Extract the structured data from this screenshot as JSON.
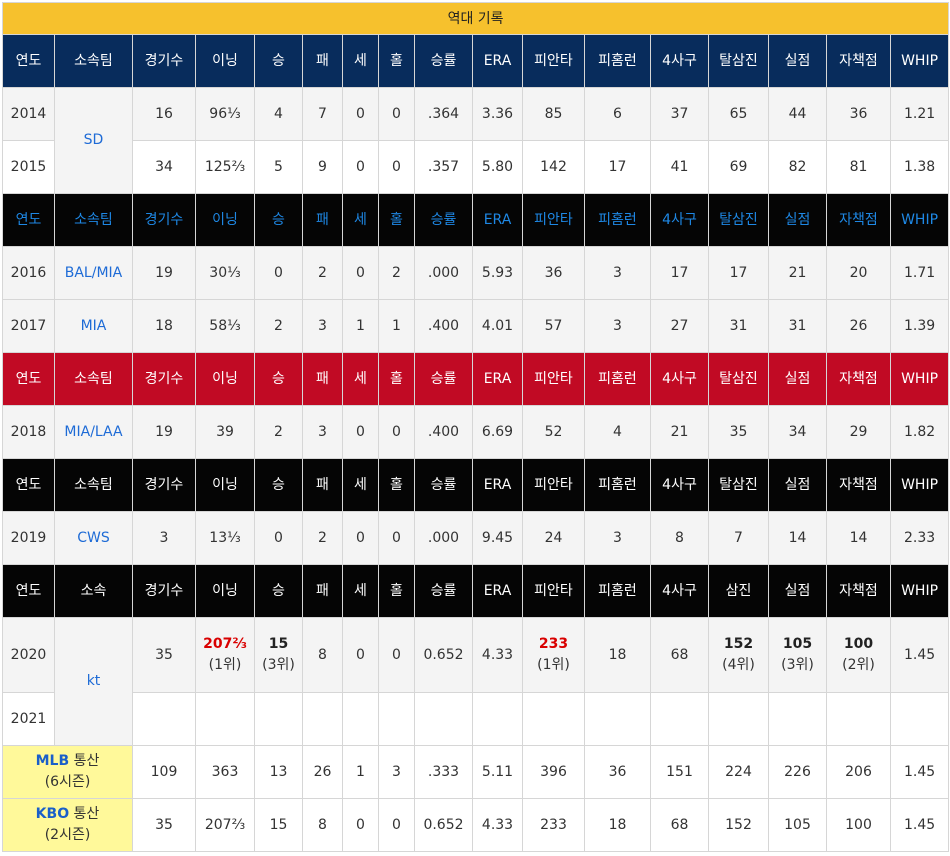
{
  "title": "역대 기록",
  "headers": {
    "year": "연도",
    "team": "소속팀",
    "team_short": "소속",
    "games": "경기수",
    "innings": "이닝",
    "wins": "승",
    "losses": "패",
    "saves": "세",
    "holds": "홀",
    "win_pct": "승률",
    "era": "ERA",
    "hits": "피안타",
    "hr": "피홈런",
    "bb": "4사구",
    "so": "탈삼진",
    "so_short": "삼진",
    "runs": "실점",
    "er": "자책점",
    "whip": "WHIP"
  },
  "rows": [
    {
      "year": "2014",
      "team": "SD",
      "g": "16",
      "ip": "96⅓",
      "w": "4",
      "l": "7",
      "sv": "0",
      "hld": "0",
      "pct": ".364",
      "era": "3.36",
      "h": "85",
      "hr": "6",
      "bb": "37",
      "so": "65",
      "r": "44",
      "er": "36",
      "whip": "1.21"
    },
    {
      "year": "2015",
      "g": "34",
      "ip": "125⅔",
      "w": "5",
      "l": "9",
      "sv": "0",
      "hld": "0",
      "pct": ".357",
      "era": "5.80",
      "h": "142",
      "hr": "17",
      "bb": "41",
      "so": "69",
      "r": "82",
      "er": "81",
      "whip": "1.38"
    },
    {
      "year": "2016",
      "team": "BAL/MIA",
      "g": "19",
      "ip": "30⅓",
      "w": "0",
      "l": "2",
      "sv": "0",
      "hld": "2",
      "pct": ".000",
      "era": "5.93",
      "h": "36",
      "hr": "3",
      "bb": "17",
      "so": "17",
      "r": "21",
      "er": "20",
      "whip": "1.71"
    },
    {
      "year": "2017",
      "team": "MIA",
      "g": "18",
      "ip": "58⅓",
      "w": "2",
      "l": "3",
      "sv": "1",
      "hld": "1",
      "pct": ".400",
      "era": "4.01",
      "h": "57",
      "hr": "3",
      "bb": "27",
      "so": "31",
      "r": "31",
      "er": "26",
      "whip": "1.39"
    },
    {
      "year": "2018",
      "team": "MIA/LAA",
      "g": "19",
      "ip": "39",
      "w": "2",
      "l": "3",
      "sv": "0",
      "hld": "0",
      "pct": ".400",
      "era": "6.69",
      "h": "52",
      "hr": "4",
      "bb": "21",
      "so": "35",
      "r": "34",
      "er": "29",
      "whip": "1.82"
    },
    {
      "year": "2019",
      "team": "CWS",
      "g": "3",
      "ip": "13⅓",
      "w": "0",
      "l": "2",
      "sv": "0",
      "hld": "0",
      "pct": ".000",
      "era": "9.45",
      "h": "24",
      "hr": "3",
      "bb": "8",
      "so": "7",
      "r": "14",
      "er": "14",
      "whip": "2.33"
    },
    {
      "year": "2020",
      "team": "kt",
      "g": "35",
      "ip": "207⅔",
      "ip_rank": "(1위)",
      "w": "15",
      "w_rank": "(3위)",
      "l": "8",
      "sv": "0",
      "hld": "0",
      "pct": "0.652",
      "era": "4.33",
      "h": "233",
      "h_rank": "(1위)",
      "hr": "18",
      "bb": "68",
      "so": "152",
      "so_rank": "(4위)",
      "r": "105",
      "r_rank": "(3위)",
      "er": "100",
      "er_rank": "(2위)",
      "whip": "1.45"
    },
    {
      "year": "2021"
    }
  ],
  "totals": [
    {
      "league": "MLB",
      "label": "통산",
      "seasons": "(6시즌)",
      "g": "109",
      "ip": "363",
      "w": "13",
      "l": "26",
      "sv": "1",
      "hld": "3",
      "pct": ".333",
      "era": "5.11",
      "h": "396",
      "hr": "36",
      "bb": "151",
      "so": "224",
      "r": "226",
      "er": "206",
      "whip": "1.45"
    },
    {
      "league": "KBO",
      "label": "통산",
      "seasons": "(2시즌)",
      "g": "35",
      "ip": "207⅔",
      "w": "15",
      "l": "8",
      "sv": "0",
      "hld": "0",
      "pct": "0.652",
      "era": "4.33",
      "h": "233",
      "hr": "18",
      "bb": "68",
      "so": "152",
      "r": "105",
      "er": "100",
      "whip": "1.45"
    }
  ]
}
